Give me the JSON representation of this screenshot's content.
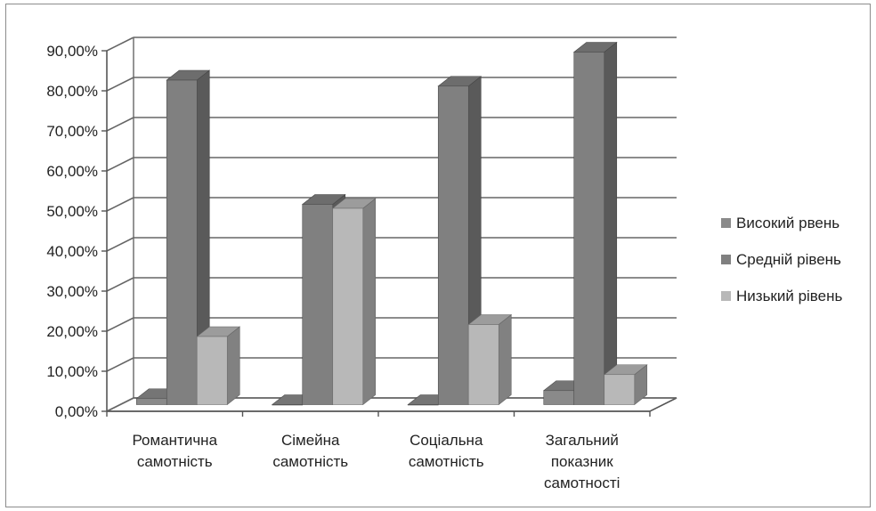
{
  "chart_data": {
    "type": "bar",
    "title": "",
    "xlabel": "",
    "ylabel": "",
    "categories": [
      [
        "Романтична",
        "самотність"
      ],
      [
        "Сімейна",
        "самотність"
      ],
      [
        "Соціальна",
        "самотність"
      ],
      [
        "Загальний",
        "показник",
        "самотності"
      ]
    ],
    "series": [
      {
        "name": "Високий рвень",
        "values": [
          1.5,
          0,
          0,
          3.5
        ],
        "color": "#8a8a8a"
      },
      {
        "name": "Средній рівень",
        "values": [
          81,
          50,
          79.5,
          88
        ],
        "color": "#808080"
      },
      {
        "name": "Низький рівень",
        "values": [
          17,
          49,
          20,
          7.5
        ],
        "color": "#b8b8b8"
      }
    ],
    "ylim": [
      0,
      90
    ],
    "yticks": [
      0,
      10,
      20,
      30,
      40,
      50,
      60,
      70,
      80,
      90
    ],
    "ytick_labels": [
      "0,00%",
      "10,00%",
      "20,00%",
      "30,00%",
      "40,00%",
      "50,00%",
      "60,00%",
      "70,00%",
      "80,00%",
      "90,00%"
    ],
    "grid": true,
    "three_d": true,
    "legend_position": "right"
  }
}
